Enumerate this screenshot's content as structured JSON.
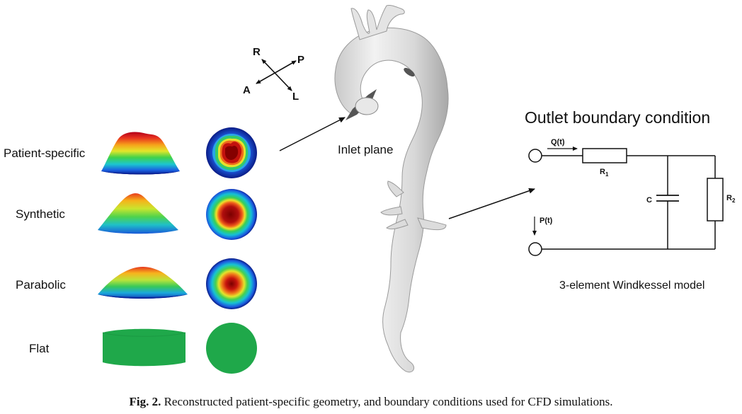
{
  "profiles": [
    {
      "label": "Patient-specific",
      "kind": "patient"
    },
    {
      "label": "Synthetic",
      "kind": "synthetic"
    },
    {
      "label": "Parabolic",
      "kind": "parabolic"
    },
    {
      "label": "Flat",
      "kind": "flat"
    }
  ],
  "orientation": {
    "r": "R",
    "p": "P",
    "a": "A",
    "l": "L"
  },
  "inlet_label": "Inlet plane",
  "outlet": {
    "title": "Outlet boundary condition",
    "q": "Q(t)",
    "p": "P(t)",
    "r1": "R",
    "r1_sub": "1",
    "c": "C",
    "r2": "R",
    "r2_sub": "2",
    "model": "3-element Windkessel model"
  },
  "caption": {
    "prefix": "Fig. 2.",
    "text": "Reconstructed patient-specific geometry, and boundary conditions used for CFD simulations."
  },
  "colors": {
    "flat_green": "#1fa84a",
    "vessel": "#dedede",
    "vessel_edge": "#9a9a9a"
  }
}
